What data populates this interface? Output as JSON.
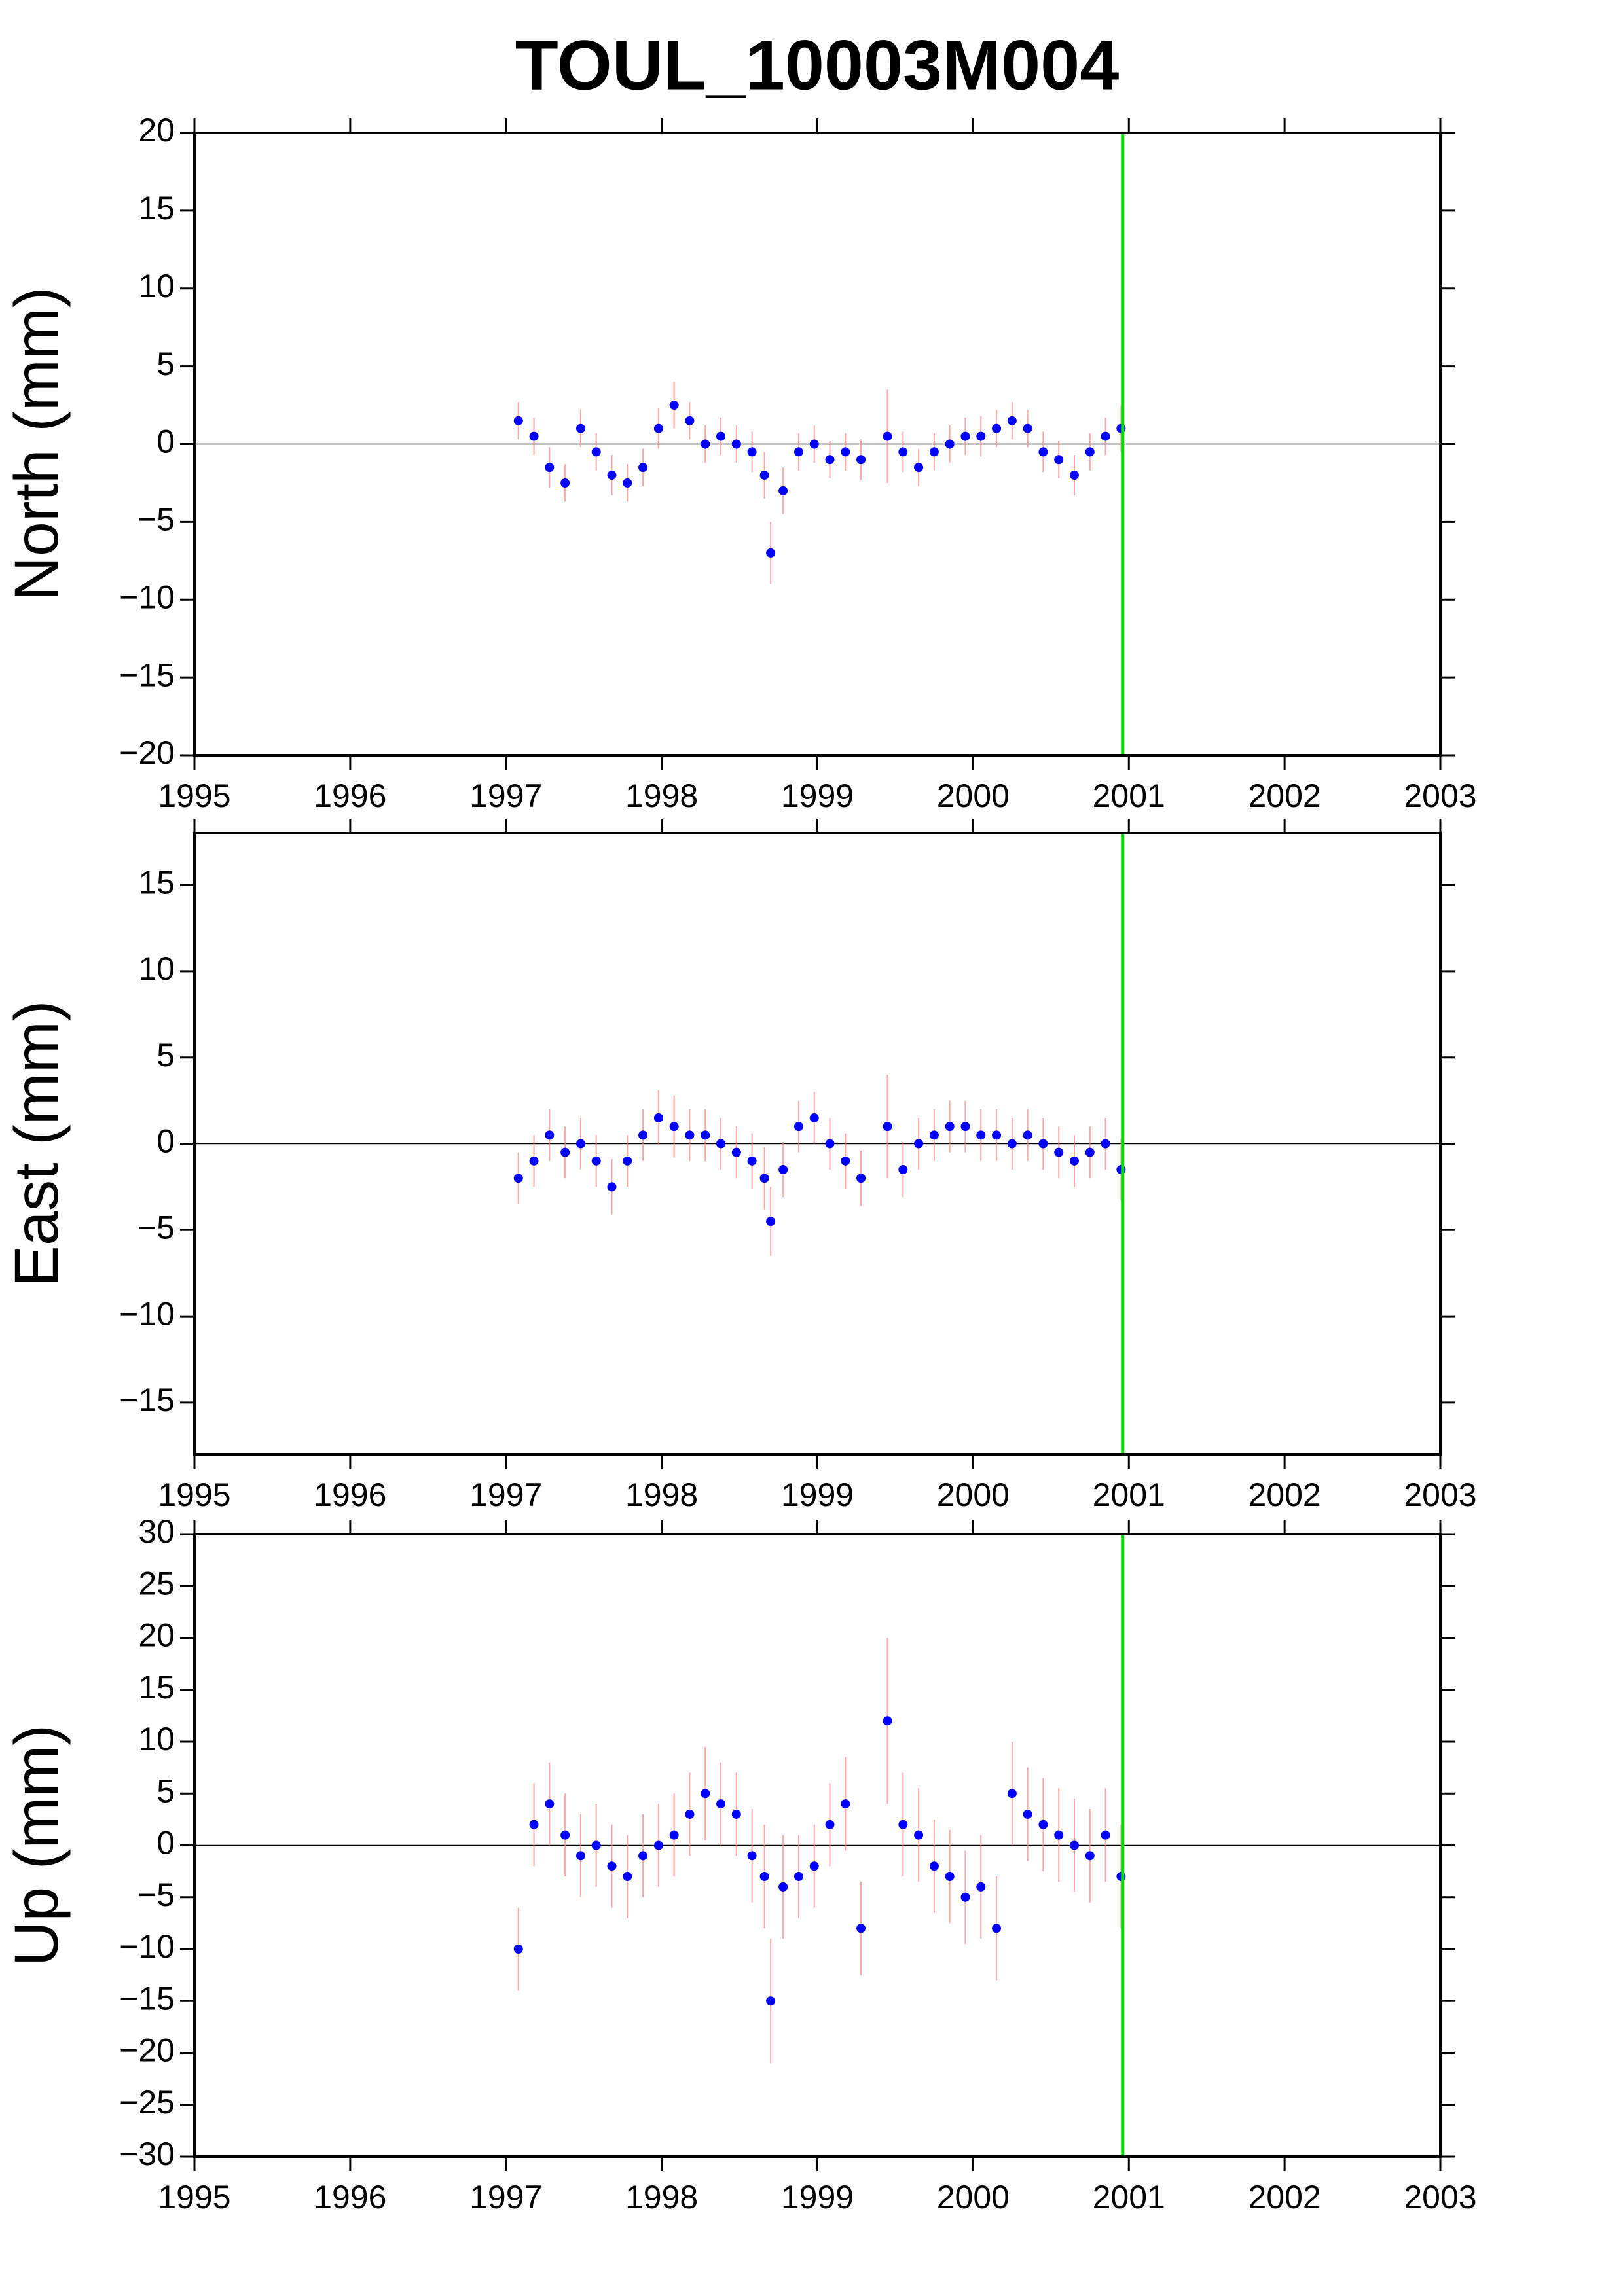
{
  "chart_data": [
    {
      "type": "scatter",
      "title": "TOUL_10003M004",
      "y_label": "North (mm)",
      "x": [
        1997.08,
        1997.18,
        1997.28,
        1997.38,
        1997.48,
        1997.58,
        1997.68,
        1997.78,
        1997.88,
        1997.98,
        1998.08,
        1998.18,
        1998.28,
        1998.38,
        1998.48,
        1998.58,
        1998.66,
        1998.7,
        1998.78,
        1998.88,
        1998.98,
        1999.08,
        1999.18,
        1999.28,
        1999.45,
        1999.55,
        1999.65,
        1999.75,
        1999.85,
        1999.95,
        2000.05,
        2000.15,
        2000.25,
        2000.35,
        2000.45,
        2000.55,
        2000.65,
        2000.75,
        2000.85,
        2000.95
      ],
      "values": [
        1.5,
        0.5,
        -1.5,
        -2.5,
        1,
        -0.5,
        -2,
        -2.5,
        -1.5,
        1,
        2.5,
        1.5,
        0,
        0.5,
        0,
        -0.5,
        -2,
        -7,
        -3,
        -0.5,
        0,
        -1,
        -0.5,
        -1,
        0.5,
        -0.5,
        -1.5,
        -0.5,
        0,
        0.5,
        0.5,
        1,
        1.5,
        1,
        -0.5,
        -1,
        -2,
        -0.5,
        0.5,
        1
      ],
      "errors": [
        1.2,
        1.2,
        1.3,
        1.2,
        1.2,
        1.2,
        1.3,
        1.2,
        1.2,
        1.3,
        1.5,
        1.2,
        1.2,
        1.2,
        1.2,
        1.3,
        1.5,
        2,
        1.5,
        1.2,
        1.2,
        1.2,
        1.2,
        1.3,
        3,
        1.3,
        1.2,
        1.2,
        1.2,
        1.2,
        1.3,
        1.2,
        1.2,
        1.2,
        1.3,
        1.2,
        1.3,
        1.2,
        1.2,
        1.5
      ],
      "color": "#0000ff",
      "error_color": "#ff8080",
      "vline": 2000.96,
      "vline_color": "#00dd00",
      "hline": 0,
      "xlim": [
        1995,
        2003
      ],
      "xticks": [
        1995,
        1996,
        1997,
        1998,
        1999,
        2000,
        2001,
        2002,
        2003
      ],
      "ylim": [
        -20,
        20
      ],
      "yticks": [
        {
          "value": -20,
          "label": "−20"
        },
        {
          "value": -15,
          "label": "−15"
        },
        {
          "value": -10,
          "label": "−10"
        },
        {
          "value": -5,
          "label": "−5"
        },
        0,
        5,
        10,
        15,
        20
      ]
    },
    {
      "type": "scatter",
      "y_label": "East (mm)",
      "x": [
        1997.08,
        1997.18,
        1997.28,
        1997.38,
        1997.48,
        1997.58,
        1997.68,
        1997.78,
        1997.88,
        1997.98,
        1998.08,
        1998.18,
        1998.28,
        1998.38,
        1998.48,
        1998.58,
        1998.66,
        1998.7,
        1998.78,
        1998.88,
        1998.98,
        1999.08,
        1999.18,
        1999.28,
        1999.45,
        1999.55,
        1999.65,
        1999.75,
        1999.85,
        1999.95,
        2000.05,
        2000.15,
        2000.25,
        2000.35,
        2000.45,
        2000.55,
        2000.65,
        2000.75,
        2000.85,
        2000.95
      ],
      "values": [
        -2,
        -1,
        0.5,
        -0.5,
        0,
        -1,
        -2.5,
        -1,
        0.5,
        1.5,
        1,
        0.5,
        0.5,
        0,
        -0.5,
        -1,
        -2,
        -4.5,
        -1.5,
        1,
        1.5,
        0,
        -1,
        -2,
        1,
        -1.5,
        0,
        0.5,
        1,
        1,
        0.5,
        0.5,
        0,
        0.5,
        0,
        -0.5,
        -1,
        -0.5,
        0,
        -1.5
      ],
      "errors": [
        1.5,
        1.5,
        1.5,
        1.5,
        1.5,
        1.5,
        1.6,
        1.5,
        1.5,
        1.6,
        1.8,
        1.5,
        1.5,
        1.5,
        1.5,
        1.6,
        1.8,
        2,
        1.6,
        1.5,
        1.5,
        1.5,
        1.6,
        1.6,
        3,
        1.6,
        1.5,
        1.5,
        1.5,
        1.5,
        1.5,
        1.5,
        1.5,
        1.5,
        1.5,
        1.5,
        1.5,
        1.5,
        1.5,
        1.8
      ],
      "color": "#0000ff",
      "error_color": "#ff8080",
      "vline": 2000.96,
      "vline_color": "#00dd00",
      "hline": 0,
      "xlim": [
        1995,
        2003
      ],
      "xticks": [
        1995,
        1996,
        1997,
        1998,
        1999,
        2000,
        2001,
        2002,
        2003
      ],
      "ylim": [
        -18,
        18
      ],
      "yticks": [
        {
          "value": -15,
          "label": "−15"
        },
        {
          "value": -10,
          "label": "−10"
        },
        {
          "value": -5,
          "label": "−5"
        },
        0,
        5,
        10,
        15
      ]
    },
    {
      "type": "scatter",
      "y_label": "Up (mm)",
      "x": [
        1997.08,
        1997.18,
        1997.28,
        1997.38,
        1997.48,
        1997.58,
        1997.68,
        1997.78,
        1997.88,
        1997.98,
        1998.08,
        1998.18,
        1998.28,
        1998.38,
        1998.48,
        1998.58,
        1998.66,
        1998.7,
        1998.78,
        1998.88,
        1998.98,
        1999.08,
        1999.18,
        1999.28,
        1999.45,
        1999.55,
        1999.65,
        1999.75,
        1999.85,
        1999.95,
        2000.05,
        2000.15,
        2000.25,
        2000.35,
        2000.45,
        2000.55,
        2000.65,
        2000.75,
        2000.85,
        2000.95
      ],
      "values": [
        -10,
        2,
        4,
        1,
        -1,
        0,
        -2,
        -3,
        -1,
        0,
        1,
        3,
        5,
        4,
        3,
        -1,
        -3,
        -15,
        -4,
        -3,
        -2,
        2,
        4,
        -8,
        12,
        2,
        1,
        -2,
        -3,
        -5,
        -4,
        -8,
        5,
        3,
        2,
        1,
        0,
        -1,
        1,
        -3
      ],
      "errors": [
        4,
        4,
        4,
        4,
        4,
        4,
        4,
        4,
        4,
        4,
        4,
        4,
        4.5,
        4,
        4,
        4.5,
        5,
        6,
        5,
        4,
        4,
        4,
        4.5,
        4.5,
        8,
        5,
        4.5,
        4.5,
        4.5,
        4.5,
        5,
        5,
        5,
        4.5,
        4.5,
        4.5,
        4.5,
        4.5,
        4.5,
        5
      ],
      "color": "#0000ff",
      "error_color": "#ff8080",
      "vline": 2000.96,
      "vline_color": "#00dd00",
      "hline": 0,
      "xlim": [
        1995,
        2003
      ],
      "xticks": [
        1995,
        1996,
        1997,
        1998,
        1999,
        2000,
        2001,
        2002,
        2003
      ],
      "ylim": [
        -30,
        30
      ],
      "yticks": [
        {
          "value": -30,
          "label": "−30"
        },
        {
          "value": -25,
          "label": "−25"
        },
        {
          "value": -20,
          "label": "−20"
        },
        {
          "value": -15,
          "label": "−15"
        },
        {
          "value": -10,
          "label": "−10"
        },
        {
          "value": -5,
          "label": "−5"
        },
        0,
        5,
        10,
        15,
        20,
        25,
        30
      ]
    }
  ]
}
